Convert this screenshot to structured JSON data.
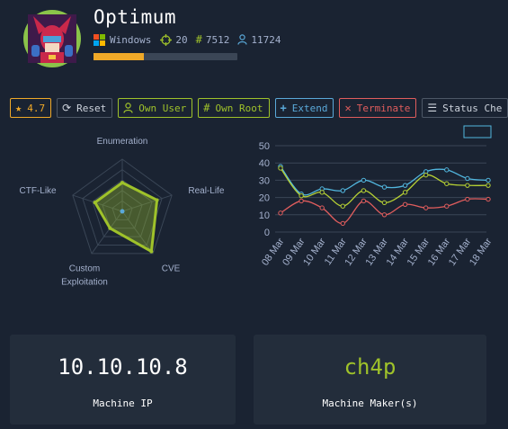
{
  "machine": {
    "name": "Optimum",
    "os": "Windows",
    "points": "20",
    "root_owns": "7512",
    "user_owns": "11724",
    "progress": 0.35
  },
  "actions": {
    "rating": "4.7",
    "reset": "Reset",
    "own_user": "Own User",
    "own_root": "Own Root",
    "extend": "Extend",
    "terminate": "Terminate",
    "status": "Status Che"
  },
  "radar": {
    "axes": [
      "Enumeration",
      "Real-Life",
      "CVE",
      "Custom Exploitation",
      "CTF-Like"
    ],
    "axis_lines": [
      [
        "Enumeration"
      ],
      [
        "Real-Life"
      ],
      [
        "CVE"
      ],
      [
        "Custom",
        "Exploitation"
      ],
      [
        "CTF-Like"
      ]
    ],
    "values": [
      0.55,
      0.7,
      0.95,
      0.4,
      0.55
    ],
    "color": "#9fc22a"
  },
  "chart_data": {
    "type": "line",
    "categories": [
      "08 Mar",
      "09 Mar",
      "10 Mar",
      "11 Mar",
      "12 Mar",
      "13 Mar",
      "14 Mar",
      "15 Mar",
      "16 Mar",
      "17 Mar",
      "18 Mar"
    ],
    "ylim": [
      0,
      50
    ],
    "yticks": [
      "50",
      "40",
      "30",
      "20",
      "10",
      "0"
    ],
    "series": [
      {
        "color": "#52b7df",
        "values": [
          38,
          22,
          25,
          24,
          30,
          26,
          27,
          35,
          36,
          31,
          30
        ]
      },
      {
        "color": "#b5cf34",
        "values": [
          37,
          21,
          23,
          15,
          24,
          17,
          23,
          33,
          28,
          27,
          27
        ]
      },
      {
        "color": "#e05d5d",
        "values": [
          11,
          18,
          14,
          5,
          18,
          10,
          16,
          14,
          15,
          19,
          19
        ]
      }
    ],
    "grid": true
  },
  "cards": {
    "ip": "10.10.10.8",
    "ip_label": "Machine IP",
    "maker": "ch4p",
    "maker_label": "Machine Maker(s)",
    "maker_color": "#9fc22a"
  }
}
